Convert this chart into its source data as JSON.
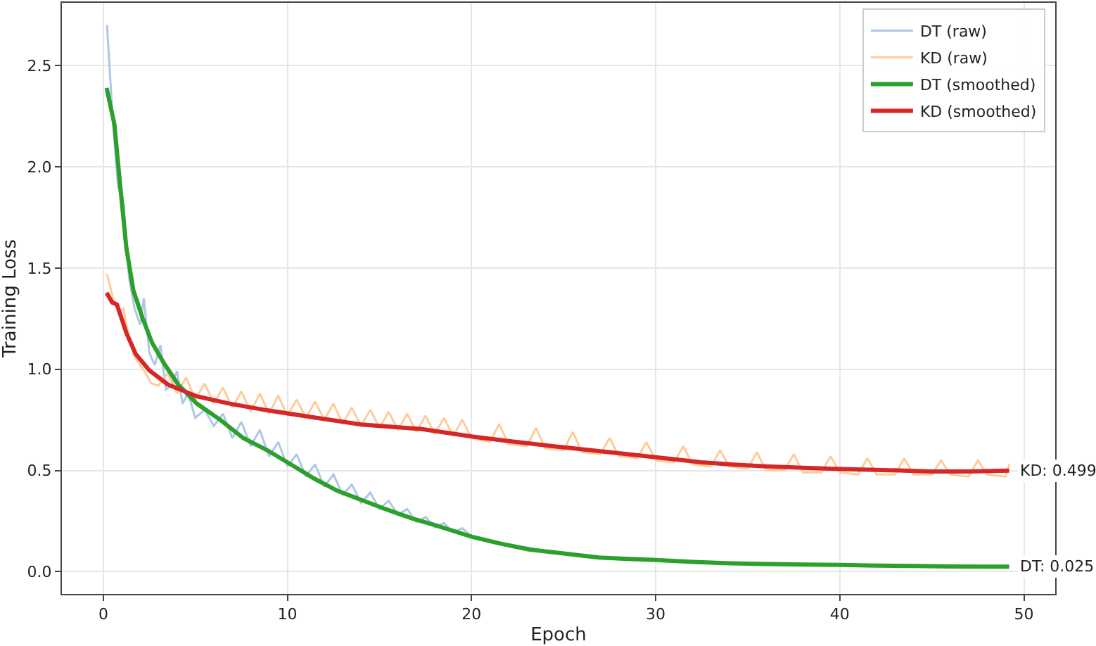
{
  "chart_data": {
    "type": "line",
    "xlabel": "Epoch",
    "ylabel": "Training Loss",
    "xlim": [
      -2.25,
      51.7
    ],
    "ylim": [
      -0.11,
      2.81
    ],
    "xticks": [
      0,
      10,
      20,
      30,
      40,
      50
    ],
    "yticks": [
      {
        "value": 0,
        "label": "0.0"
      },
      {
        "value": 0.5,
        "label": "0.5"
      },
      {
        "value": 1,
        "label": "1.0"
      },
      {
        "value": 1.5,
        "label": "1.5"
      },
      {
        "value": 2,
        "label": "2.0"
      },
      {
        "value": 2.5,
        "label": "2.5"
      }
    ],
    "grid": true,
    "legend": "top right",
    "marker": "none",
    "line_style": "solid",
    "series": [
      {
        "name": "DT (raw)",
        "color": "#aec7e8",
        "x": [
          0.2,
          0.5,
          0.8,
          1.1,
          1.4,
          1.7,
          2.0,
          2.2,
          2.5,
          2.8,
          3.1,
          3.4,
          3.7,
          4.0,
          4.3,
          4.6,
          5.0,
          5.5,
          6.0,
          6.5,
          7.0,
          7.5,
          8.0,
          8.5,
          9.0,
          9.5,
          10.0,
          10.5,
          11.0,
          11.5,
          12.0,
          12.5,
          13.0,
          13.5,
          14.0,
          14.5,
          15.0,
          15.5,
          16.0,
          16.5,
          17.0,
          17.5,
          18.0,
          18.5,
          19.0,
          19.5,
          20.0,
          21.0,
          22.0,
          23.0,
          24.0,
          25.0,
          26.0,
          27.0,
          28.0,
          30.0,
          32.0,
          34.0,
          36.0,
          38.0,
          40.0,
          42.0,
          44.0,
          46.0,
          48.0,
          49.2
        ],
        "values": [
          2.7,
          2.25,
          1.9,
          1.82,
          1.45,
          1.3,
          1.22,
          1.35,
          1.08,
          1.02,
          1.12,
          0.9,
          0.92,
          0.99,
          0.83,
          0.88,
          0.76,
          0.8,
          0.72,
          0.78,
          0.66,
          0.74,
          0.62,
          0.7,
          0.57,
          0.64,
          0.52,
          0.58,
          0.47,
          0.53,
          0.42,
          0.48,
          0.38,
          0.43,
          0.34,
          0.39,
          0.31,
          0.35,
          0.28,
          0.31,
          0.245,
          0.27,
          0.22,
          0.24,
          0.195,
          0.215,
          0.175,
          0.155,
          0.135,
          0.12,
          0.1,
          0.09,
          0.08,
          0.07,
          0.065,
          null,
          0.048,
          0.042,
          null,
          0.035,
          0.033,
          0.03,
          0.028,
          null,
          0.025,
          0.025
        ]
      },
      {
        "name": "KD (raw)",
        "color": "#ffcc99",
        "x": [
          0.2,
          0.5,
          0.8,
          1.1,
          1.4,
          1.7,
          2.0,
          2.3,
          2.6,
          3.0,
          3.5,
          4.0,
          4.5,
          5.0,
          5.5,
          6.0,
          6.5,
          7.0,
          7.5,
          8.0,
          8.5,
          9.0,
          9.5,
          10.0,
          10.5,
          11.0,
          11.5,
          12.0,
          12.5,
          13.0,
          13.5,
          14.0,
          14.5,
          15.0,
          15.5,
          16.0,
          16.5,
          17.0,
          17.5,
          18.0,
          18.5,
          19.0,
          19.5,
          20.0,
          21.0,
          21.5,
          22.0,
          23.0,
          23.5,
          24.0,
          25.0,
          25.5,
          26.0,
          27.0,
          27.5,
          28.0,
          29.0,
          29.5,
          30.0,
          31.0,
          31.5,
          32.0,
          33.0,
          33.5,
          34.0,
          35.0,
          35.5,
          36.0,
          37.0,
          37.5,
          38.0,
          39.0,
          39.5,
          40.0,
          41.0,
          41.5,
          42.0,
          43.0,
          43.5,
          44.0,
          45.0,
          45.5,
          46.0,
          47.0,
          47.5,
          48.0,
          49.0,
          49.2
        ],
        "values": [
          1.47,
          1.36,
          1.28,
          1.3,
          1.15,
          1.06,
          1.02,
          0.98,
          0.93,
          0.92,
          0.98,
          0.88,
          0.96,
          0.85,
          0.93,
          0.83,
          0.91,
          0.81,
          0.89,
          0.79,
          0.88,
          0.78,
          0.87,
          0.77,
          0.85,
          0.76,
          0.84,
          0.75,
          0.83,
          0.73,
          0.81,
          0.72,
          0.8,
          0.71,
          0.79,
          0.7,
          0.78,
          0.69,
          0.77,
          0.68,
          0.76,
          0.67,
          0.75,
          0.66,
          0.64,
          0.73,
          0.63,
          0.62,
          0.71,
          0.61,
          0.6,
          0.69,
          0.59,
          0.58,
          0.66,
          0.57,
          0.56,
          0.64,
          0.55,
          0.54,
          0.62,
          0.53,
          0.52,
          0.6,
          0.52,
          0.51,
          0.59,
          0.5,
          0.5,
          0.58,
          0.49,
          0.49,
          0.57,
          0.49,
          0.48,
          0.56,
          0.48,
          0.48,
          0.56,
          0.48,
          0.48,
          0.55,
          0.48,
          0.47,
          0.55,
          0.48,
          0.47,
          0.53
        ]
      },
      {
        "name": "DT (smoothed)",
        "color": "#2ca02c",
        "x": [
          0.18,
          0.6,
          0.87,
          1.25,
          1.63,
          2.14,
          2.65,
          3.29,
          4.06,
          5.08,
          6.35,
          7.6,
          8.9,
          10,
          11.45,
          12.7,
          14,
          15.3,
          16.7,
          18,
          20,
          21.5,
          23.1,
          25,
          26.9,
          28.5,
          30,
          32,
          34.1,
          36,
          38,
          40,
          42,
          44,
          46,
          48,
          49.2
        ],
        "values": [
          2.39,
          2.21,
          1.95,
          1.6,
          1.39,
          1.25,
          1.13,
          1.03,
          0.925,
          0.83,
          0.75,
          0.66,
          0.6,
          0.54,
          0.46,
          0.4,
          0.355,
          0.31,
          0.265,
          0.23,
          0.173,
          0.14,
          0.11,
          0.09,
          0.07,
          0.063,
          0.058,
          0.048,
          0.041,
          0.038,
          0.035,
          0.033,
          0.03,
          0.028,
          0.026,
          0.025,
          0.025
        ]
      },
      {
        "name": "KD (smoothed)",
        "color": "#d62728",
        "x": [
          0.18,
          0.48,
          0.74,
          1.25,
          1.76,
          2.5,
          3.5,
          5.08,
          6.86,
          8.9,
          11.45,
          14,
          17.3,
          20,
          22,
          24.4,
          27,
          30,
          32.5,
          34.1,
          36,
          38,
          40,
          42,
          45,
          47,
          49.2
        ],
        "values": [
          1.378,
          1.33,
          1.32,
          1.18,
          1.075,
          0.994,
          0.925,
          0.866,
          0.83,
          0.797,
          0.762,
          0.727,
          0.704,
          0.668,
          0.645,
          0.62,
          0.595,
          0.565,
          0.54,
          0.53,
          0.52,
          0.513,
          0.507,
          0.503,
          0.495,
          0.495,
          0.499
        ]
      }
    ],
    "annotations": [
      {
        "text": "KD: 0.499",
        "x": 49.2,
        "y": 0.499
      },
      {
        "text": "DT: 0.025",
        "x": 49.2,
        "y": 0.025
      }
    ]
  }
}
